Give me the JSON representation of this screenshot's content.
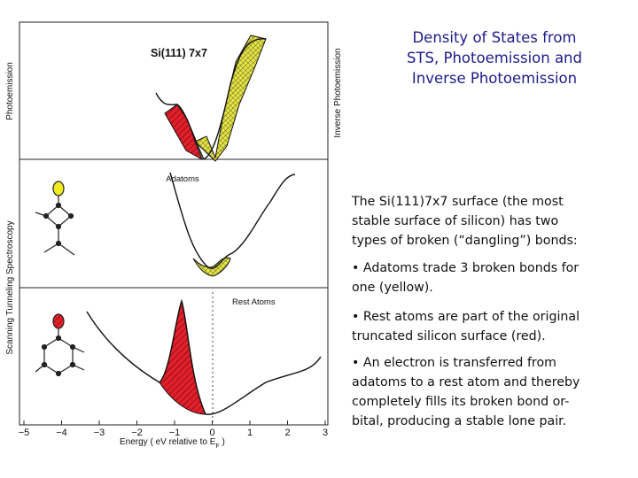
{
  "title": [
    "Density of States from",
    "STS, Photoemission and",
    "Inverse Photoemission"
  ],
  "figure": {
    "panel_title": "Si(111) 7x7",
    "left_label_top": "Photoemission",
    "right_label_top": "Inverse Photoemission",
    "left_label_bottom": "Scanning Tunneling Spectroscopy",
    "adatoms_label": "Adatoms",
    "rest_atoms_label": "Rest Atoms",
    "x_ticks": [
      "−5",
      "−4",
      "−3",
      "−2",
      "−1",
      "0",
      "1",
      "2",
      "3"
    ],
    "x_axis_label": "Energy  ( eV  relative to E",
    "x_axis_subscript": "F",
    "x_axis_close": " )"
  },
  "body": {
    "intro": [
      "The Si(111)7x7 surface  (the most",
      "stable surface of silicon)  has  two",
      "types of broken (“dangling”) bonds:"
    ],
    "points": [
      [
        "• Adatoms trade 3 broken bonds for",
        "one (yellow)."
      ],
      [
        "• Rest atoms are part of the original",
        "truncated silicon surface (red)."
      ],
      [
        "• An electron is transferred from",
        "adatoms to a rest atom and thereby",
        "completely fills its broken bond or-",
        "bital, producing a stable lone pair."
      ]
    ]
  }
}
